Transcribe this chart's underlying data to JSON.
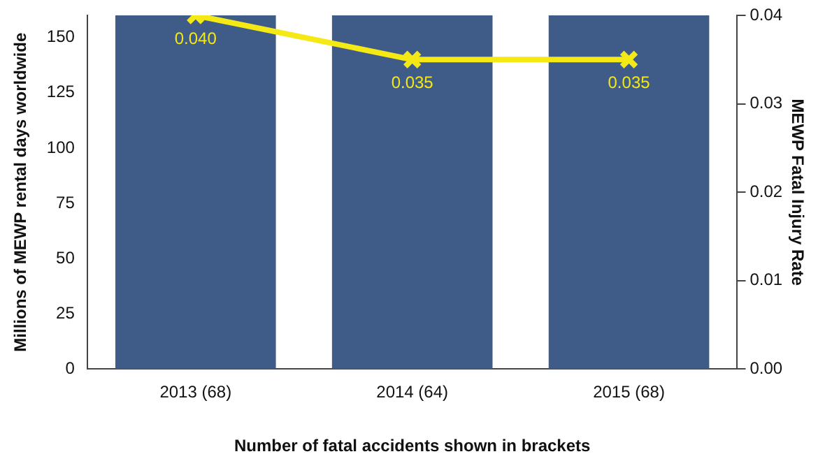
{
  "chart_data": {
    "type": "bar",
    "xlabel": "Number of fatal accidents shown in brackets",
    "ylabel": "Millions of MEWP rental days worldwide",
    "y2label": "MEWP Fatal Injury Rate",
    "categories": [
      "2013 (68)",
      "2014 (64)",
      "2015 (68)"
    ],
    "series": [
      {
        "color": "#3f5b87",
        "values": [
          160,
          160,
          160
        ]
      },
      {
        "type": "line",
        "axis": "y2",
        "color": "#f4e914",
        "marker": "cross",
        "values": [
          0.04,
          0.035,
          0.035
        ],
        "value_labels": [
          "0.040",
          "0.035",
          "0.035"
        ]
      }
    ],
    "ylim": [
      0,
      160
    ],
    "yticks": [
      0,
      25,
      50,
      75,
      100,
      125,
      150
    ],
    "y2lim": [
      0,
      0.04
    ],
    "y2ticks": [
      {
        "value": 0,
        "label": "0.00"
      },
      {
        "value": 0.01,
        "label": "0.01"
      },
      {
        "value": 0.02,
        "label": "0.02"
      },
      {
        "value": 0.03,
        "label": "0.03"
      },
      {
        "value": 0.04,
        "label": "0.04"
      }
    ]
  }
}
